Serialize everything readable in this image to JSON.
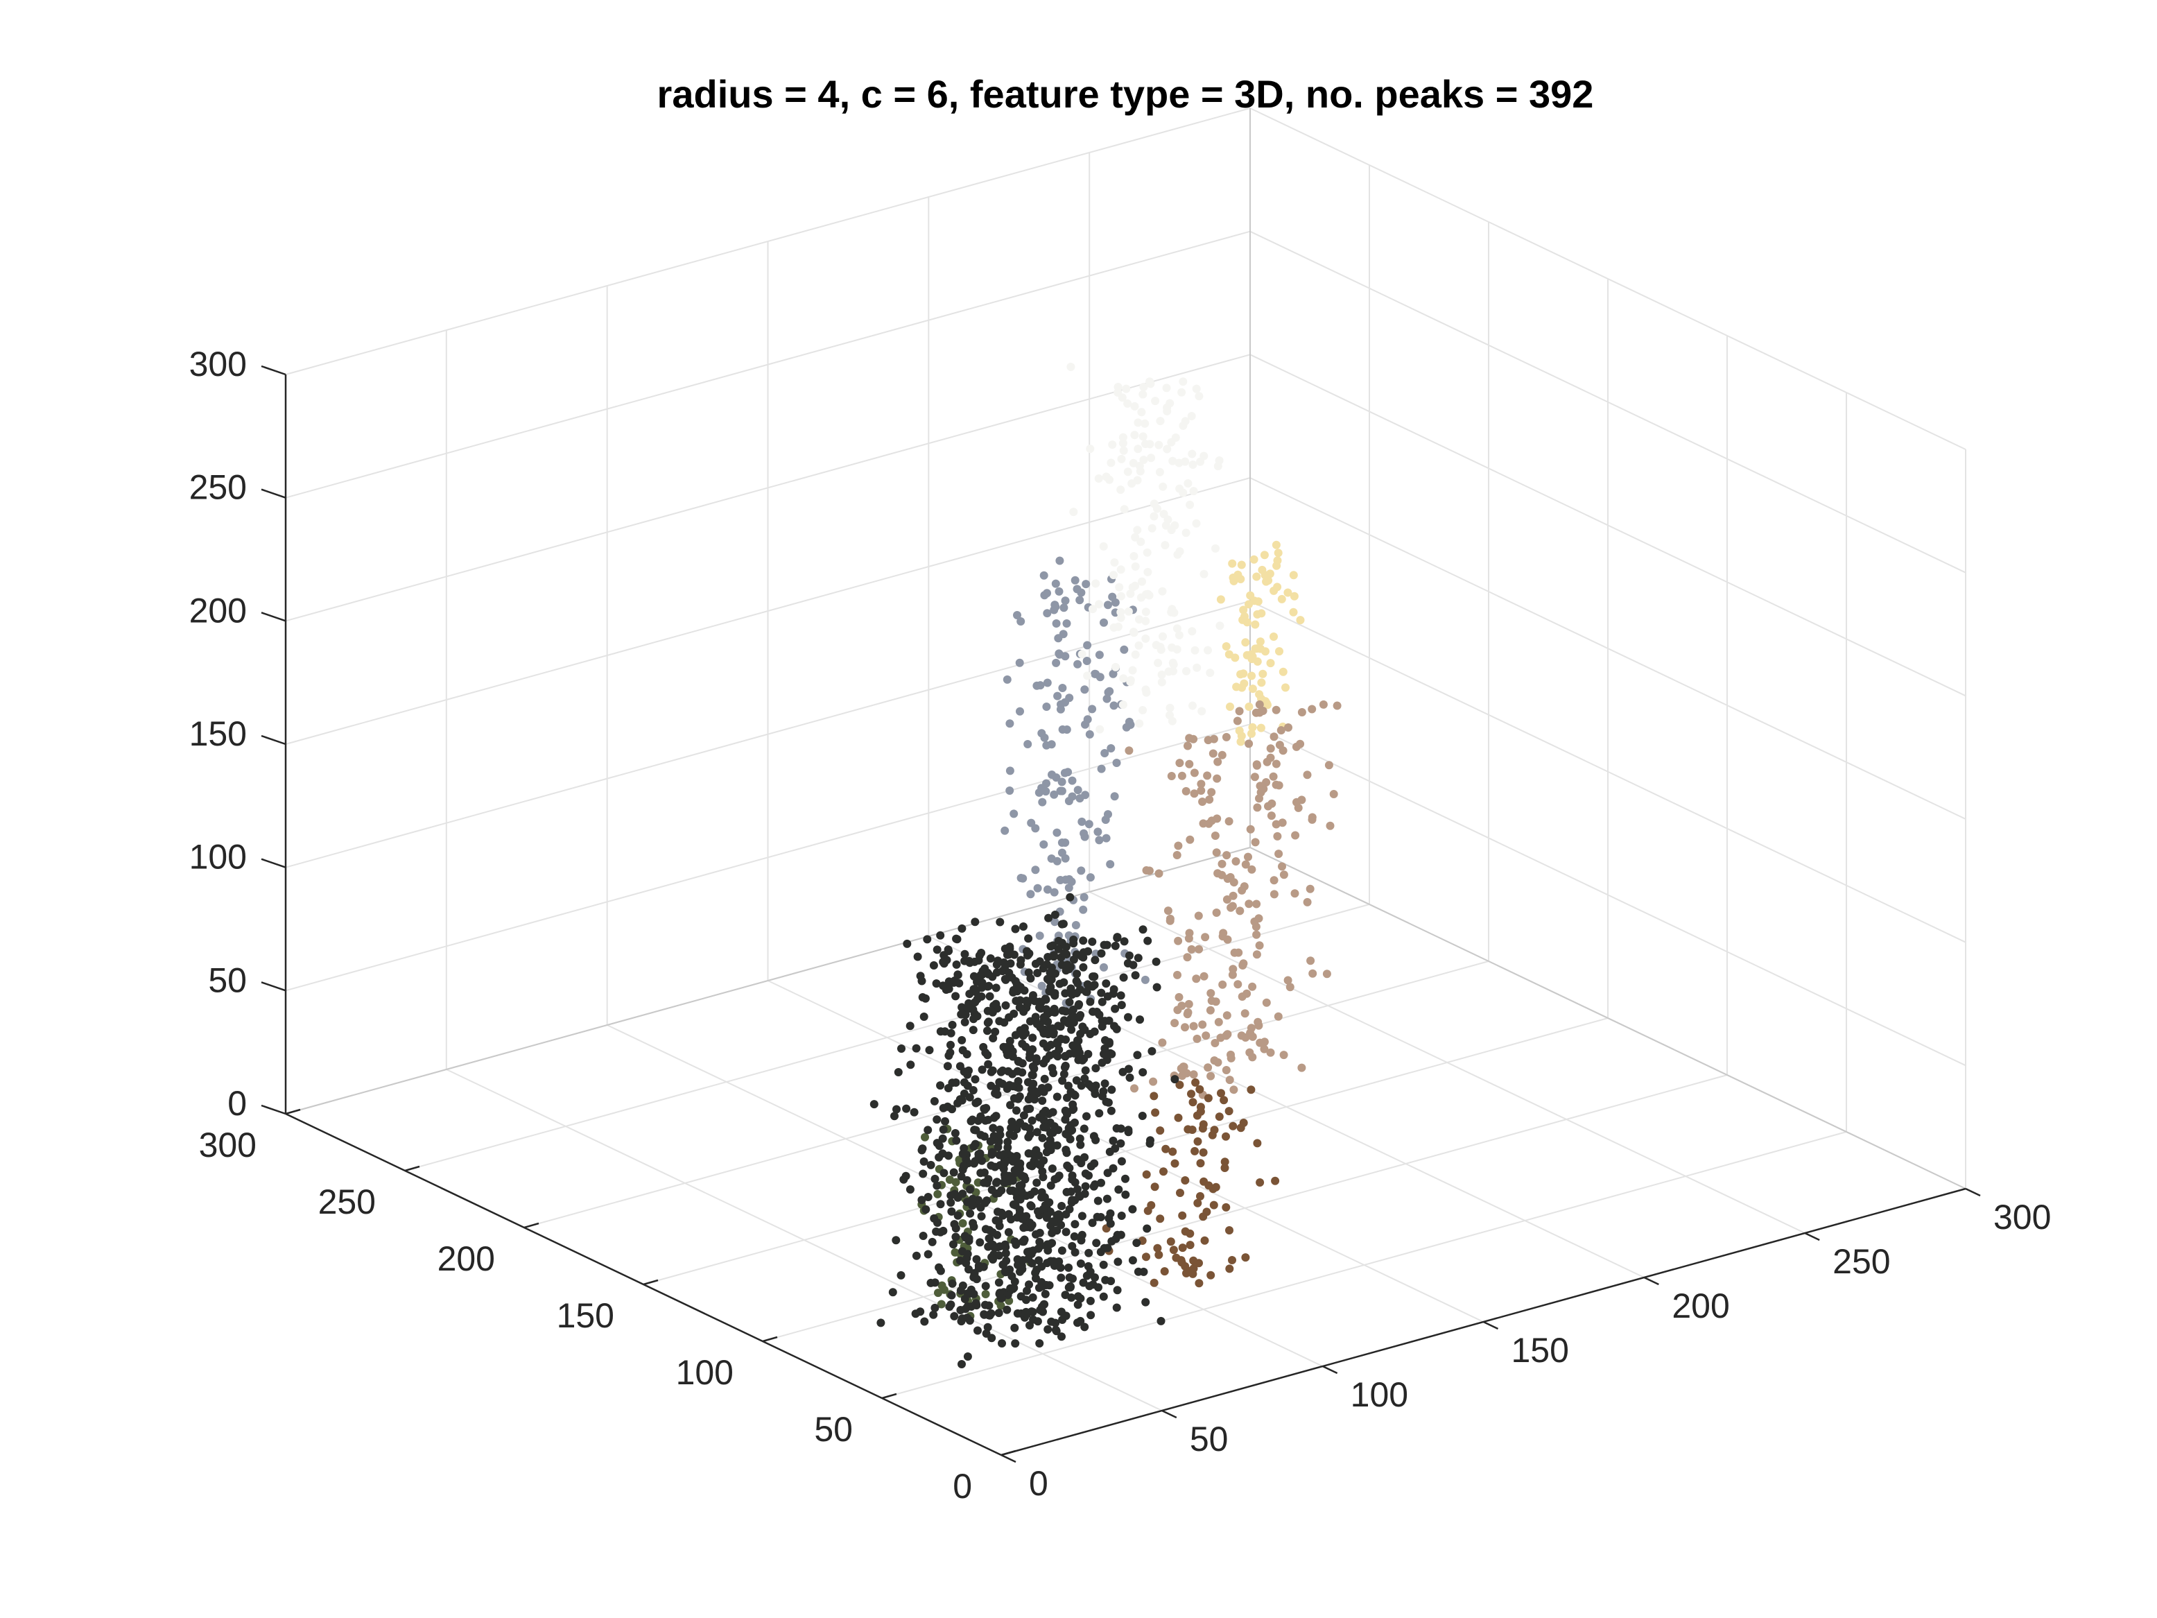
{
  "chart_data": {
    "type": "scatter",
    "title": "radius = 4, c = 6, feature type = 3D, no. peaks = 392",
    "xlabel": "",
    "ylabel": "",
    "zlabel": "",
    "view": "3d",
    "grid": true,
    "legend": "none",
    "xlim": [
      0,
      300
    ],
    "ylim": [
      0,
      300
    ],
    "zlim": [
      0,
      300
    ],
    "x_ticks": [
      "0",
      "50",
      "100",
      "150",
      "200",
      "250",
      "300"
    ],
    "y_ticks": [
      "0",
      "50",
      "100",
      "150",
      "200",
      "250",
      "300"
    ],
    "z_ticks": [
      "0",
      "50",
      "100",
      "150",
      "200",
      "250",
      "300"
    ],
    "clusters": [
      {
        "color": "#8e96a6",
        "points": 180,
        "x_range": [
          95,
          135
        ],
        "y_range": [
          105,
          145
        ],
        "z_range": [
          95,
          255
        ]
      },
      {
        "color": "#f5f5f2",
        "points": 170,
        "x_range": [
          140,
          185
        ],
        "y_range": [
          135,
          180
        ],
        "z_range": [
          175,
          300
        ]
      },
      {
        "color": "#f3e0a4",
        "points": 80,
        "x_range": [
          175,
          205
        ],
        "y_range": [
          140,
          160
        ],
        "z_range": [
          150,
          225
        ]
      },
      {
        "color": "#b89a86",
        "points": 220,
        "x_range": [
          115,
          185
        ],
        "y_range": [
          80,
          125
        ],
        "z_range": [
          55,
          195
        ]
      },
      {
        "color": "#7a5436",
        "points": 90,
        "x_range": [
          70,
          125
        ],
        "y_range": [
          35,
          70
        ],
        "z_range": [
          15,
          85
        ]
      },
      {
        "color": "#4f5e3a",
        "points": 60,
        "x_range": [
          40,
          70
        ],
        "y_range": [
          70,
          110
        ],
        "z_range": [
          5,
          65
        ]
      },
      {
        "color": "#2c2e2c",
        "points": 1100,
        "x_range": [
          30,
          110
        ],
        "y_range": [
          45,
          125
        ],
        "z_range": [
          0,
          135
        ]
      }
    ]
  }
}
